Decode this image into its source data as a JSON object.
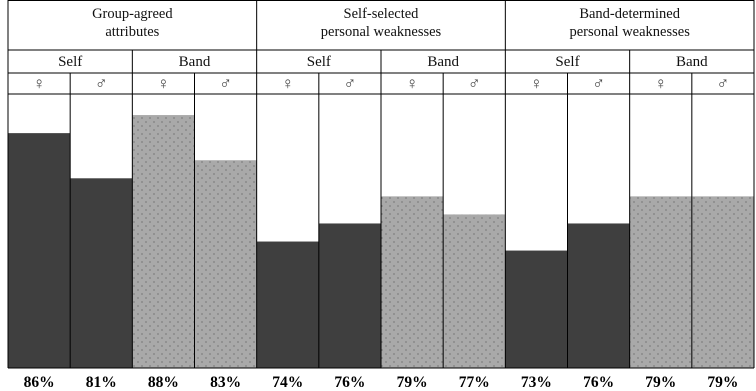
{
  "chart_data": {
    "type": "bar",
    "groups": [
      {
        "title_line1": "Group-agreed",
        "title_line2": "attributes",
        "subgroups": [
          {
            "label": "Self",
            "bars": [
              {
                "symbol": "♀",
                "value": 86,
                "label": "86%"
              },
              {
                "symbol": "♂",
                "value": 81,
                "label": "81%"
              }
            ]
          },
          {
            "label": "Band",
            "bars": [
              {
                "symbol": "♀",
                "value": 88,
                "label": "88%"
              },
              {
                "symbol": "♂",
                "value": 83,
                "label": "83%"
              }
            ]
          }
        ]
      },
      {
        "title_line1": "Self-selected",
        "title_line2": "personal weaknesses",
        "subgroups": [
          {
            "label": "Self",
            "bars": [
              {
                "symbol": "♀",
                "value": 74,
                "label": "74%"
              },
              {
                "symbol": "♂",
                "value": 76,
                "label": "76%"
              }
            ]
          },
          {
            "label": "Band",
            "bars": [
              {
                "symbol": "♀",
                "value": 79,
                "label": "79%"
              },
              {
                "symbol": "♂",
                "value": 77,
                "label": "77%"
              }
            ]
          }
        ]
      },
      {
        "title_line1": "Band-determined",
        "title_line2": "personal weaknesses",
        "subgroups": [
          {
            "label": "Self",
            "bars": [
              {
                "symbol": "♀",
                "value": 73,
                "label": "73%"
              },
              {
                "symbol": "♂",
                "value": 76,
                "label": "76%"
              }
            ]
          },
          {
            "label": "Band",
            "bars": [
              {
                "symbol": "♀",
                "value": 79,
                "label": "79%"
              },
              {
                "symbol": "♂",
                "value": 79,
                "label": "79%"
              }
            ]
          }
        ]
      }
    ],
    "ylim": [
      60,
      90
    ],
    "colors": {
      "Self": "#3f3f3f",
      "Band": "#a9a9a9",
      "Band_dots": "#555555",
      "grid": "#000000"
    }
  }
}
